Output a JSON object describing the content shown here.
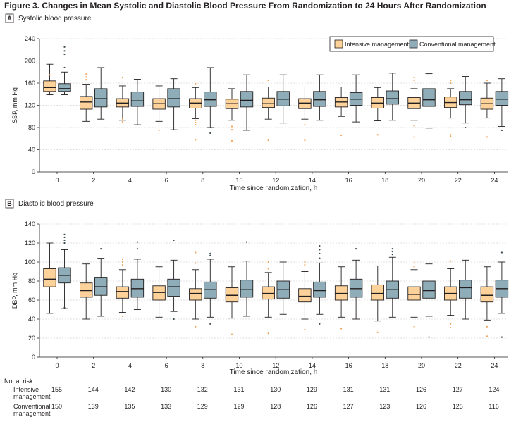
{
  "figure_title": "Figure 3. Changes in Mean Systolic and Diastolic Blood Pressure From Randomization to 24 Hours After Randomization",
  "colors": {
    "intensive": "#fcd29a",
    "conventional": "#8eadb9",
    "outlier_intensive": "#f0a45a",
    "outlier_conventional": "#3c4a52",
    "line": "#231f20"
  },
  "legend": {
    "intensive": "Intensive management",
    "conventional": "Conventional management"
  },
  "chart_data": [
    {
      "type": "box",
      "panel_letter": "A",
      "title": "Systolic blood pressure",
      "xlabel": "Time since randomization, h",
      "ylabel": "SBP, mm Hg",
      "ylim": [
        0,
        240
      ],
      "yticks": [
        0,
        40,
        80,
        120,
        160,
        200,
        240
      ],
      "grid": true,
      "legend_position": "top-right",
      "categories": [
        "0",
        "2",
        "4",
        "6",
        "8",
        "10",
        "12",
        "14",
        "16",
        "18",
        "20",
        "22",
        "24"
      ],
      "series": [
        {
          "name": "Intensive management",
          "boxes": [
            {
              "whislo": 139,
              "q1": 145,
              "med": 152,
              "q3": 164,
              "whishi": 194,
              "fliers": [
                175
              ]
            },
            {
              "whislo": 91,
              "q1": 113,
              "med": 126,
              "q3": 136,
              "whishi": 158,
              "fliers": [
                166,
                171,
                176
              ]
            },
            {
              "whislo": 93,
              "q1": 117,
              "med": 124,
              "q3": 132,
              "whishi": 155,
              "fliers": [
                90,
                95,
                170
              ]
            },
            {
              "whislo": 91,
              "q1": 113,
              "med": 123,
              "q3": 132,
              "whishi": 155,
              "fliers": [
                75
              ]
            },
            {
              "whislo": 96,
              "q1": 115,
              "med": 124,
              "q3": 132,
              "whishi": 152,
              "fliers": [
                58,
                85,
                89,
                93,
                159
              ]
            },
            {
              "whislo": 93,
              "q1": 114,
              "med": 123,
              "q3": 131,
              "whishi": 150,
              "fliers": [
                56,
                76,
                82
              ]
            },
            {
              "whislo": 95,
              "q1": 116,
              "med": 123,
              "q3": 133,
              "whishi": 153,
              "fliers": [
                57,
                165
              ]
            },
            {
              "whislo": 95,
              "q1": 114,
              "med": 124,
              "q3": 132,
              "whishi": 153,
              "fliers": [
                57,
                85
              ]
            },
            {
              "whislo": 100,
              "q1": 117,
              "med": 126,
              "q3": 134,
              "whishi": 153,
              "fliers": [
                66
              ]
            },
            {
              "whislo": 92,
              "q1": 115,
              "med": 124,
              "q3": 134,
              "whishi": 152,
              "fliers": [
                67
              ]
            },
            {
              "whislo": 93,
              "q1": 114,
              "med": 124,
              "q3": 134,
              "whishi": 150,
              "fliers": [
                63,
                83,
                165,
                170
              ]
            },
            {
              "whislo": 97,
              "q1": 116,
              "med": 125,
              "q3": 135,
              "whishi": 150,
              "fliers": [
                64,
                67,
                160,
                165
              ]
            },
            {
              "whislo": 97,
              "q1": 113,
              "med": 123,
              "q3": 133,
              "whishi": 160,
              "fliers": [
                63,
                165
              ]
            }
          ]
        },
        {
          "name": "Conventional management",
          "boxes": [
            {
              "whislo": 139,
              "q1": 145,
              "med": 150,
              "q3": 159,
              "whishi": 180,
              "fliers": [
                188,
                212,
                218,
                225
              ]
            },
            {
              "whislo": 95,
              "q1": 117,
              "med": 132,
              "q3": 150,
              "whishi": 188,
              "fliers": []
            },
            {
              "whislo": 85,
              "q1": 118,
              "med": 128,
              "q3": 144,
              "whishi": 167,
              "fliers": []
            },
            {
              "whislo": 76,
              "q1": 117,
              "med": 132,
              "q3": 150,
              "whishi": 168,
              "fliers": []
            },
            {
              "whislo": 80,
              "q1": 118,
              "med": 130,
              "q3": 144,
              "whishi": 188,
              "fliers": [
                70
              ]
            },
            {
              "whislo": 75,
              "q1": 117,
              "med": 129,
              "q3": 145,
              "whishi": 175,
              "fliers": []
            },
            {
              "whislo": 88,
              "q1": 119,
              "med": 131,
              "q3": 145,
              "whishi": 175,
              "fliers": []
            },
            {
              "whislo": 93,
              "q1": 118,
              "med": 130,
              "q3": 145,
              "whishi": 175,
              "fliers": []
            },
            {
              "whislo": 90,
              "q1": 120,
              "med": 131,
              "q3": 143,
              "whishi": 175,
              "fliers": []
            },
            {
              "whislo": 93,
              "q1": 122,
              "med": 132,
              "q3": 146,
              "whishi": 178,
              "fliers": []
            },
            {
              "whislo": 79,
              "q1": 118,
              "med": 130,
              "q3": 150,
              "whishi": 177,
              "fliers": []
            },
            {
              "whislo": 88,
              "q1": 121,
              "med": 130,
              "q3": 145,
              "whishi": 172,
              "fliers": [
                80
              ]
            },
            {
              "whislo": 82,
              "q1": 120,
              "med": 131,
              "q3": 145,
              "whishi": 168,
              "fliers": [
                75
              ]
            }
          ]
        }
      ]
    },
    {
      "type": "box",
      "panel_letter": "B",
      "title": "Diastolic blood pressure",
      "xlabel": "Time since randomization, h",
      "ylabel": "DBP, mm Hg",
      "ylim": [
        0,
        140
      ],
      "yticks": [
        0,
        20,
        40,
        60,
        80,
        100,
        120,
        140
      ],
      "grid": true,
      "categories": [
        "0",
        "2",
        "4",
        "6",
        "8",
        "10",
        "12",
        "14",
        "16",
        "18",
        "20",
        "22",
        "24"
      ],
      "series": [
        {
          "name": "Intensive management",
          "boxes": [
            {
              "whislo": 46,
              "q1": 74,
              "med": 82,
              "q3": 93,
              "whishi": 120,
              "fliers": []
            },
            {
              "whislo": 40,
              "q1": 63,
              "med": 70,
              "q3": 78,
              "whishi": 98,
              "fliers": []
            },
            {
              "whislo": 47,
              "q1": 62,
              "med": 69,
              "q3": 74,
              "whishi": 92,
              "fliers": [
                43,
                97,
                100,
                103
              ]
            },
            {
              "whislo": 42,
              "q1": 60,
              "med": 68,
              "q3": 75,
              "whishi": 95,
              "fliers": []
            },
            {
              "whislo": 40,
              "q1": 60,
              "med": 67,
              "q3": 72,
              "whishi": 92,
              "fliers": [
                32,
                99,
                110
              ]
            },
            {
              "whislo": 41,
              "q1": 58,
              "med": 65,
              "q3": 73,
              "whishi": 95,
              "fliers": [
                24
              ]
            },
            {
              "whislo": 42,
              "q1": 61,
              "med": 67,
              "q3": 74,
              "whishi": 89,
              "fliers": [
                25,
                93,
                100
              ]
            },
            {
              "whislo": 40,
              "q1": 58,
              "med": 64,
              "q3": 72,
              "whishi": 90,
              "fliers": [
                29,
                97,
                100
              ]
            },
            {
              "whislo": 42,
              "q1": 60,
              "med": 67,
              "q3": 75,
              "whishi": 95,
              "fliers": [
                30
              ]
            },
            {
              "whislo": 38,
              "q1": 60,
              "med": 67,
              "q3": 76,
              "whishi": 96,
              "fliers": [
                26
              ]
            },
            {
              "whislo": 42,
              "q1": 60,
              "med": 66,
              "q3": 74,
              "whishi": 92,
              "fliers": [
                32,
                95,
                99
              ]
            },
            {
              "whislo": 44,
              "q1": 60,
              "med": 67,
              "q3": 74,
              "whishi": 93,
              "fliers": [
                31,
                35,
                101
              ]
            },
            {
              "whislo": 39,
              "q1": 58,
              "med": 65,
              "q3": 74,
              "whishi": 95,
              "fliers": [
                22,
                32
              ]
            }
          ]
        },
        {
          "name": "Conventional management",
          "boxes": [
            {
              "whislo": 51,
              "q1": 78,
              "med": 86,
              "q3": 94,
              "whishi": 113,
              "fliers": [
                52,
                120,
                123,
                126,
                129
              ]
            },
            {
              "whislo": 43,
              "q1": 65,
              "med": 74,
              "q3": 84,
              "whishi": 104,
              "fliers": [
                114
              ]
            },
            {
              "whislo": 50,
              "q1": 63,
              "med": 72,
              "q3": 82,
              "whishi": 103,
              "fliers": [
                114,
                121
              ]
            },
            {
              "whislo": 48,
              "q1": 64,
              "med": 74,
              "q3": 82,
              "whishi": 102,
              "fliers": [
                40,
                123
              ]
            },
            {
              "whislo": 42,
              "q1": 62,
              "med": 71,
              "q3": 79,
              "whishi": 103,
              "fliers": [
                35,
                107,
                109
              ]
            },
            {
              "whislo": 43,
              "q1": 63,
              "med": 71,
              "q3": 81,
              "whishi": 101,
              "fliers": [
                121
              ]
            },
            {
              "whislo": 45,
              "q1": 62,
              "med": 71,
              "q3": 80,
              "whishi": 100,
              "fliers": []
            },
            {
              "whislo": 45,
              "q1": 63,
              "med": 70,
              "q3": 79,
              "whishi": 99,
              "fliers": [
                35,
                104,
                109,
                113,
                117
              ]
            },
            {
              "whislo": 40,
              "q1": 63,
              "med": 72,
              "q3": 82,
              "whishi": 102,
              "fliers": [
                114
              ]
            },
            {
              "whislo": 42,
              "q1": 62,
              "med": 71,
              "q3": 80,
              "whishi": 105,
              "fliers": [
                108,
                111,
                114
              ]
            },
            {
              "whislo": 43,
              "q1": 62,
              "med": 70,
              "q3": 80,
              "whishi": 98,
              "fliers": [
                21
              ]
            },
            {
              "whislo": 40,
              "q1": 62,
              "med": 73,
              "q3": 81,
              "whishi": 102,
              "fliers": []
            },
            {
              "whislo": 46,
              "q1": 63,
              "med": 72,
              "q3": 81,
              "whishi": 100,
              "fliers": [
                21,
                110
              ]
            }
          ]
        }
      ]
    }
  ],
  "at_risk": {
    "header": "No. at risk",
    "rows": [
      {
        "label_line1": "Intensive",
        "label_line2": "management",
        "values": [
          "155",
          "144",
          "142",
          "130",
          "132",
          "131",
          "130",
          "129",
          "131",
          "131",
          "126",
          "127",
          "124"
        ]
      },
      {
        "label_line1": "Conventional",
        "label_line2": "management",
        "values": [
          "150",
          "139",
          "135",
          "133",
          "129",
          "129",
          "128",
          "126",
          "127",
          "123",
          "126",
          "125",
          "116"
        ]
      }
    ]
  }
}
